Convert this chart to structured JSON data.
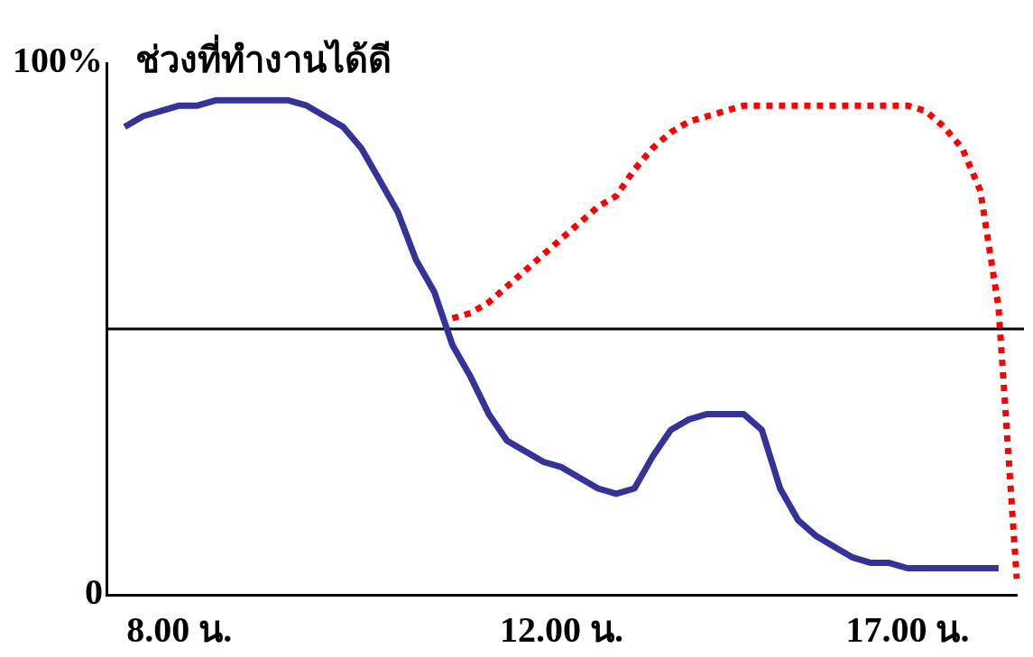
{
  "chart_data": {
    "type": "line",
    "title": "ช่วงที่ทำงานได้ดี",
    "categories": [
      null,
      null,
      null,
      null,
      "8.00 น.",
      null,
      null,
      null,
      null,
      null,
      null,
      null,
      null,
      null,
      null,
      null,
      null,
      null,
      null,
      null,
      null,
      null,
      null,
      null,
      null,
      "12.00 น.",
      null,
      null,
      null,
      null,
      null,
      null,
      null,
      null,
      null,
      null,
      null,
      null,
      null,
      null,
      null,
      null,
      null,
      null,
      "17.00 น.",
      null,
      null,
      null,
      null,
      null,
      null
    ],
    "ylim": [
      0,
      100
    ],
    "yticks": [
      0,
      {
        "value": 100,
        "label": "100%"
      }
    ],
    "ref_lines": [
      {
        "axis": "y",
        "value": 50,
        "color": "#000000"
      }
    ],
    "grid": false,
    "legend": false,
    "marker": "none",
    "series": [
      {
        "color": "#333399",
        "line_style": "solid",
        "values": [
          null,
          88,
          90,
          91,
          92,
          92,
          93,
          93,
          93,
          93,
          93,
          92,
          90,
          88,
          84,
          78,
          72,
          63,
          57,
          47,
          41,
          34,
          29,
          27,
          25,
          24,
          22,
          20,
          19,
          20,
          26,
          31,
          33,
          34,
          34,
          34,
          31,
          20,
          14,
          11,
          9,
          7,
          6,
          6,
          5,
          5,
          5,
          5,
          5,
          5,
          null
        ]
      },
      {
        "color": "#ff0000",
        "line_style": "dotted",
        "values": [
          null,
          null,
          null,
          null,
          null,
          null,
          null,
          null,
          null,
          null,
          null,
          null,
          null,
          null,
          null,
          null,
          null,
          null,
          null,
          52,
          53,
          55,
          58,
          61,
          64,
          67,
          70,
          73,
          75,
          80,
          84,
          87,
          89,
          90,
          91,
          92,
          92,
          92,
          92,
          92,
          92,
          92,
          92,
          92,
          92,
          91,
          88,
          84,
          76,
          54,
          3
        ]
      }
    ]
  }
}
